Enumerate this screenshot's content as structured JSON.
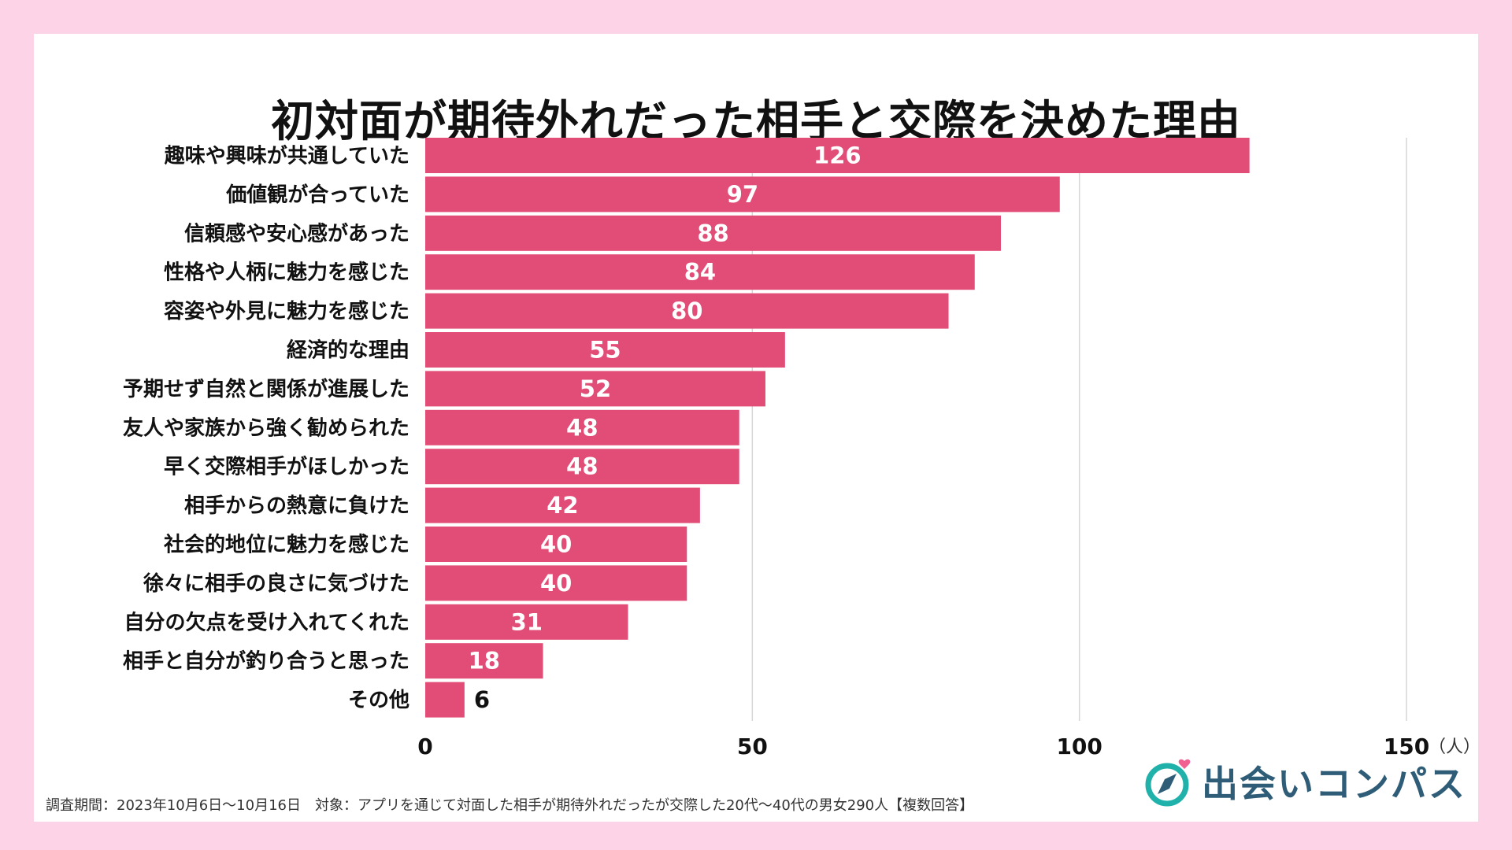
{
  "chart_data": {
    "type": "bar",
    "orientation": "horizontal",
    "title": "初対面が期待外れだった相手と交際を決めた理由",
    "categories": [
      "趣味や興味が共通していた",
      "価値観が合っていた",
      "信頼感や安心感があった",
      "性格や人柄に魅力を感じた",
      "容姿や外見に魅力を感じた",
      "経済的な理由",
      "予期せず自然と関係が進展した",
      "友人や家族から強く勧められた",
      "早く交際相手がほしかった",
      "相手からの熱意に負けた",
      "社会的地位に魅力を感じた",
      "徐々に相手の良さに気づけた",
      "自分の欠点を受け入れてくれた",
      "相手と自分が釣り合うと思った",
      "その他"
    ],
    "values": [
      126,
      97,
      88,
      84,
      80,
      55,
      52,
      48,
      48,
      42,
      40,
      40,
      31,
      18,
      6
    ],
    "xlim": [
      0,
      150
    ],
    "xticks": [
      0,
      50,
      100,
      150
    ],
    "tick_labels": [
      "0",
      "50",
      "100",
      "150"
    ],
    "unit": "（人）",
    "bar_color": "#e14d76",
    "grid": true
  },
  "footnote": "調査期間：2023年10月6日～10月16日　対象：アプリを通じて対面した相手が期待外れだったが交際した20代～40代の男女290人【複数回答】",
  "brand": {
    "name": "出会いコンパス",
    "icon": "compass-heart-icon",
    "color": "#2f5d78",
    "accent": "#20b2aa",
    "heart": "#f06090"
  }
}
